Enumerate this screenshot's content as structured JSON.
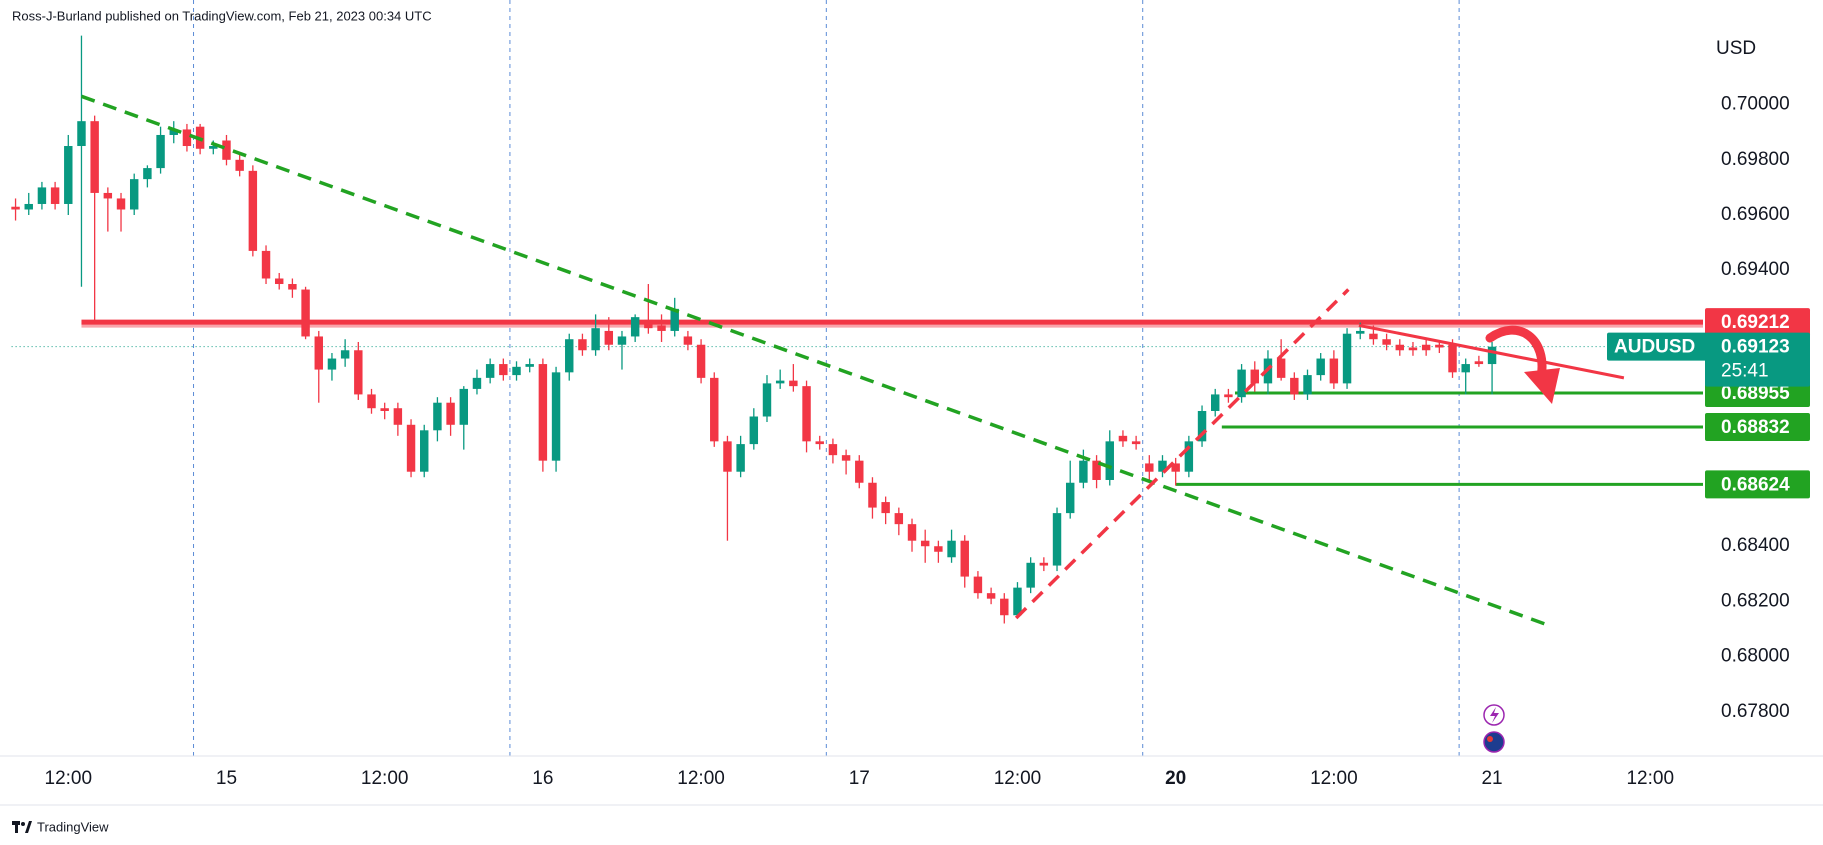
{
  "chart_data": {
    "type": "candlestick",
    "header": "Ross-J-Burland published on TradingView.com, Feb 21, 2023 00:34 UTC",
    "footer": "TradingView",
    "axis_unit": "USD",
    "up_color": "#089981",
    "down_color": "#f23645",
    "grid": false,
    "xlim": [
      -0.3,
      128
    ],
    "ylim": [
      0.6764,
      0.70379
    ],
    "yticks": [
      {
        "value": 0.7,
        "label": "0.70000"
      },
      {
        "value": 0.698,
        "label": "0.69800"
      },
      {
        "value": 0.696,
        "label": "0.69600"
      },
      {
        "value": 0.694,
        "label": "0.69400"
      },
      {
        "value": 0.692,
        "label": "0.69200"
      },
      {
        "value": 0.69,
        "label": "0.69000"
      },
      {
        "value": 0.688,
        "label": "0.68800"
      },
      {
        "value": 0.686,
        "label": "0.68600"
      },
      {
        "value": 0.684,
        "label": "0.68400"
      },
      {
        "value": 0.682,
        "label": "0.68200"
      },
      {
        "value": 0.68,
        "label": "0.68000"
      },
      {
        "value": 0.678,
        "label": "0.67800"
      }
    ],
    "xticks": [
      {
        "value": 4,
        "label": "12:00"
      },
      {
        "value": 16,
        "label": "15"
      },
      {
        "value": 28,
        "label": "12:00"
      },
      {
        "value": 40,
        "label": "16"
      },
      {
        "value": 52,
        "label": "12:00"
      },
      {
        "value": 64,
        "label": "17"
      },
      {
        "value": 76,
        "label": "12:00"
      },
      {
        "value": 88,
        "label": "20",
        "bold": true
      },
      {
        "value": 100,
        "label": "12:00"
      },
      {
        "value": 112,
        "label": "21"
      },
      {
        "value": 124,
        "label": "12:00"
      }
    ],
    "session_breaks": [
      13.5,
      37.5,
      61.5,
      85.5,
      109.5
    ],
    "ohlc": [
      [
        0.6963,
        0.6966,
        0.6958,
        0.6962
      ],
      [
        0.6962,
        0.6968,
        0.696,
        0.6964
      ],
      [
        0.6964,
        0.6972,
        0.6962,
        0.697
      ],
      [
        0.697,
        0.6972,
        0.6962,
        0.6964
      ],
      [
        0.6964,
        0.6989,
        0.696,
        0.6985
      ],
      [
        0.6985,
        0.7025,
        0.6934,
        0.6994
      ],
      [
        0.6994,
        0.6996,
        0.6921,
        0.6968
      ],
      [
        0.6968,
        0.697,
        0.6954,
        0.6966
      ],
      [
        0.6966,
        0.6968,
        0.6954,
        0.6962
      ],
      [
        0.6962,
        0.6975,
        0.696,
        0.6973
      ],
      [
        0.6973,
        0.6978,
        0.697,
        0.6977
      ],
      [
        0.6977,
        0.6992,
        0.6975,
        0.6989
      ],
      [
        0.6989,
        0.6994,
        0.6986,
        0.6991
      ],
      [
        0.6991,
        0.6993,
        0.6983,
        0.6985
      ],
      [
        0.6992,
        0.6993,
        0.6982,
        0.6984
      ],
      [
        0.6984,
        0.6987,
        0.6982,
        0.6985
      ],
      [
        0.6987,
        0.6989,
        0.6978,
        0.698
      ],
      [
        0.698,
        0.6982,
        0.6974,
        0.6976
      ],
      [
        0.6976,
        0.6978,
        0.6945,
        0.6947
      ],
      [
        0.6947,
        0.6949,
        0.6935,
        0.6937
      ],
      [
        0.6937,
        0.6939,
        0.6933,
        0.6935
      ],
      [
        0.6935,
        0.6937,
        0.693,
        0.6933
      ],
      [
        0.6933,
        0.6934,
        0.6915,
        0.6916
      ],
      [
        0.6916,
        0.6918,
        0.6892,
        0.6904
      ],
      [
        0.6904,
        0.691,
        0.69,
        0.6908
      ],
      [
        0.6908,
        0.6915,
        0.6905,
        0.6911
      ],
      [
        0.6911,
        0.6914,
        0.6893,
        0.6895
      ],
      [
        0.6895,
        0.6897,
        0.6888,
        0.689
      ],
      [
        0.689,
        0.6892,
        0.6886,
        0.6889
      ],
      [
        0.689,
        0.6892,
        0.688,
        0.6884
      ],
      [
        0.6884,
        0.6886,
        0.6865,
        0.6867
      ],
      [
        0.6867,
        0.6884,
        0.6865,
        0.6882
      ],
      [
        0.6882,
        0.6894,
        0.6878,
        0.6892
      ],
      [
        0.6892,
        0.6894,
        0.688,
        0.6884
      ],
      [
        0.6884,
        0.6898,
        0.6875,
        0.6897
      ],
      [
        0.6897,
        0.6904,
        0.6895,
        0.6901
      ],
      [
        0.6901,
        0.6908,
        0.6899,
        0.6906
      ],
      [
        0.6906,
        0.6908,
        0.69,
        0.6902
      ],
      [
        0.6902,
        0.6907,
        0.69,
        0.6905
      ],
      [
        0.6905,
        0.6908,
        0.6903,
        0.6906
      ],
      [
        0.6906,
        0.6908,
        0.6867,
        0.6871
      ],
      [
        0.6871,
        0.6905,
        0.6867,
        0.6903
      ],
      [
        0.6903,
        0.6917,
        0.69,
        0.6915
      ],
      [
        0.6915,
        0.6917,
        0.6909,
        0.6911
      ],
      [
        0.6911,
        0.6924,
        0.6909,
        0.6919
      ],
      [
        0.6918,
        0.6923,
        0.6911,
        0.6913
      ],
      [
        0.6913,
        0.6918,
        0.6904,
        0.6916
      ],
      [
        0.6916,
        0.6924,
        0.6914,
        0.6923
      ],
      [
        0.6922,
        0.6935,
        0.6917,
        0.6919
      ],
      [
        0.692,
        0.6924,
        0.6914,
        0.6918
      ],
      [
        0.6918,
        0.693,
        0.6916,
        0.6926
      ],
      [
        0.6916,
        0.6918,
        0.6911,
        0.6913
      ],
      [
        0.6913,
        0.6915,
        0.6899,
        0.6901
      ],
      [
        0.6901,
        0.6903,
        0.6876,
        0.6878
      ],
      [
        0.6878,
        0.688,
        0.6842,
        0.6867
      ],
      [
        0.6867,
        0.688,
        0.6865,
        0.6877
      ],
      [
        0.6877,
        0.689,
        0.6875,
        0.6887
      ],
      [
        0.6887,
        0.6902,
        0.6885,
        0.6899
      ],
      [
        0.6899,
        0.6904,
        0.6897,
        0.69
      ],
      [
        0.69,
        0.6906,
        0.6896,
        0.6898
      ],
      [
        0.6898,
        0.69,
        0.6874,
        0.6878
      ],
      [
        0.6878,
        0.688,
        0.6875,
        0.6877
      ],
      [
        0.6877,
        0.6879,
        0.687,
        0.6873
      ],
      [
        0.6873,
        0.6875,
        0.6866,
        0.6871
      ],
      [
        0.6871,
        0.6873,
        0.6861,
        0.6863
      ],
      [
        0.6863,
        0.6865,
        0.685,
        0.6854
      ],
      [
        0.6856,
        0.6858,
        0.6848,
        0.6852
      ],
      [
        0.6852,
        0.6854,
        0.6844,
        0.6848
      ],
      [
        0.6848,
        0.685,
        0.6838,
        0.6842
      ],
      [
        0.6842,
        0.6846,
        0.6834,
        0.684
      ],
      [
        0.684,
        0.6842,
        0.6834,
        0.6838
      ],
      [
        0.6836,
        0.6846,
        0.6834,
        0.6842
      ],
      [
        0.6842,
        0.6844,
        0.6825,
        0.6829
      ],
      [
        0.6829,
        0.6831,
        0.6821,
        0.6823
      ],
      [
        0.6823,
        0.6825,
        0.6819,
        0.6821
      ],
      [
        0.6821,
        0.6823,
        0.6812,
        0.6815
      ],
      [
        0.6815,
        0.6827,
        0.6814,
        0.6825
      ],
      [
        0.6825,
        0.6836,
        0.6823,
        0.6834
      ],
      [
        0.6834,
        0.6836,
        0.6831,
        0.6833
      ],
      [
        0.6833,
        0.6854,
        0.6831,
        0.6852
      ],
      [
        0.6852,
        0.6871,
        0.685,
        0.6863
      ],
      [
        0.6863,
        0.6875,
        0.6861,
        0.6871
      ],
      [
        0.6871,
        0.6873,
        0.6861,
        0.6864
      ],
      [
        0.6864,
        0.6882,
        0.6862,
        0.6878
      ],
      [
        0.688,
        0.6882,
        0.6876,
        0.6878
      ],
      [
        0.6878,
        0.688,
        0.6875,
        0.6877
      ],
      [
        0.687,
        0.6873,
        0.6864,
        0.6867
      ],
      [
        0.6867,
        0.6873,
        0.6865,
        0.6871
      ],
      [
        0.687,
        0.6872,
        0.6862,
        0.6867
      ],
      [
        0.6867,
        0.688,
        0.6865,
        0.6878
      ],
      [
        0.6878,
        0.6891,
        0.6876,
        0.6889
      ],
      [
        0.6889,
        0.6897,
        0.6887,
        0.6895
      ],
      [
        0.6895,
        0.6897,
        0.6892,
        0.6894
      ],
      [
        0.6894,
        0.6906,
        0.6892,
        0.6904
      ],
      [
        0.6904,
        0.6907,
        0.6896,
        0.6899
      ],
      [
        0.6899,
        0.6911,
        0.6895,
        0.6908
      ],
      [
        0.6908,
        0.6915,
        0.69,
        0.6901
      ],
      [
        0.6901,
        0.6903,
        0.6893,
        0.6895
      ],
      [
        0.6895,
        0.6904,
        0.6893,
        0.6902
      ],
      [
        0.6902,
        0.691,
        0.69,
        0.6908
      ],
      [
        0.6908,
        0.6911,
        0.6897,
        0.6899
      ],
      [
        0.6899,
        0.6919,
        0.6897,
        0.6917
      ],
      [
        0.6917,
        0.6921,
        0.6915,
        0.6918
      ],
      [
        0.6917,
        0.692,
        0.6913,
        0.6915
      ],
      [
        0.6915,
        0.6917,
        0.6911,
        0.6913
      ],
      [
        0.6913,
        0.6915,
        0.6909,
        0.6911
      ],
      [
        0.6912,
        0.6914,
        0.6909,
        0.6911
      ],
      [
        0.6913,
        0.6915,
        0.6909,
        0.6911
      ],
      [
        0.6913,
        0.6914,
        0.691,
        0.6912
      ],
      [
        0.6913,
        0.6915,
        0.6901,
        0.6903
      ],
      [
        0.6903,
        0.6908,
        0.6895,
        0.6906
      ],
      [
        0.6907,
        0.6909,
        0.6905,
        0.6906
      ],
      [
        0.6906,
        0.6914,
        0.6895,
        0.69123
      ]
    ],
    "levels": [
      {
        "value": 0.69212,
        "from": 5,
        "color": "#f23645"
      },
      {
        "value": 0.68955,
        "from": 92.5,
        "color": "#22a322"
      },
      {
        "value": 0.68832,
        "from": 91.5,
        "color": "#22a322"
      },
      {
        "value": 0.68624,
        "from": 88,
        "color": "#22a322"
      }
    ],
    "trendlines": [
      {
        "color": "#22a322",
        "dashed": true,
        "points": [
          [
            5,
            0.7003
          ],
          [
            116.5,
            0.6811
          ]
        ]
      },
      {
        "color": "#f23645",
        "dashed": true,
        "points": [
          [
            75.9,
            0.6814
          ],
          [
            101.1,
            0.6933
          ]
        ]
      },
      {
        "color": "#f23645",
        "dashed": false,
        "points": [
          [
            101.9,
            0.692
          ],
          [
            122,
            0.6901
          ]
        ]
      }
    ],
    "last_price": {
      "symbol": "AUDUSD",
      "value": 0.69123,
      "countdown": "25:41",
      "color": "#089981"
    }
  }
}
